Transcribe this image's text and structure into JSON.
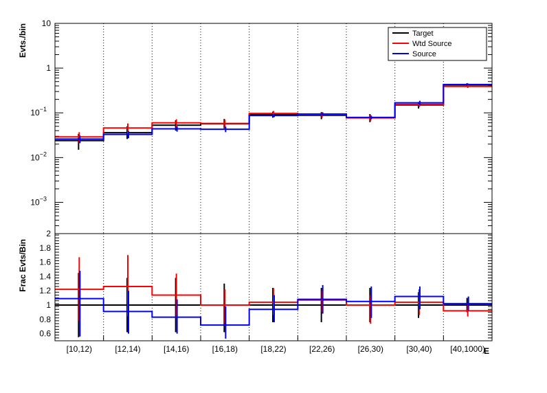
{
  "chart_data": [
    {
      "panel": "top",
      "type": "line",
      "scale": "log",
      "ylabel": "Evts./bin",
      "ylim": [
        0.0002,
        10
      ],
      "yticks": [
        {
          "value": 10,
          "label": "10"
        },
        {
          "value": 1,
          "label": "1"
        },
        {
          "value": 0.1,
          "label": "10",
          "exp": "−1"
        },
        {
          "value": 0.01,
          "label": "10",
          "exp": "−2"
        },
        {
          "value": 0.001,
          "label": "10",
          "exp": "−3"
        }
      ],
      "categories": [
        "[10,12)",
        "[12,14)",
        "[14,16)",
        "[16,18)",
        "[18,22)",
        "[22,26)",
        "[26,30)",
        "[30,40)",
        "[40,1000)"
      ],
      "grid": "vertical-dotted",
      "legend_position": "top-right",
      "series": [
        {
          "name": "Target",
          "color": "#000000",
          "values": [
            0.024,
            0.036,
            0.053,
            0.057,
            0.092,
            0.088,
            0.078,
            0.15,
            0.42
          ],
          "err_low": [
            0.015,
            0.026,
            0.04,
            0.045,
            0.078,
            0.072,
            0.062,
            0.125,
            0.38
          ],
          "err_high": [
            0.034,
            0.05,
            0.068,
            0.073,
            0.106,
            0.104,
            0.094,
            0.175,
            0.46
          ]
        },
        {
          "name": "Wtd Source",
          "color": "#ff0000",
          "values": [
            0.029,
            0.046,
            0.06,
            0.058,
            0.097,
            0.091,
            0.077,
            0.155,
            0.39
          ],
          "err_low": [
            0.021,
            0.034,
            0.047,
            0.046,
            0.084,
            0.078,
            0.065,
            0.135,
            0.36
          ],
          "err_high": [
            0.037,
            0.058,
            0.072,
            0.07,
            0.11,
            0.104,
            0.089,
            0.175,
            0.42
          ]
        },
        {
          "name": "Source",
          "color": "#0000ff",
          "values": [
            0.026,
            0.033,
            0.044,
            0.043,
            0.087,
            0.094,
            0.079,
            0.168,
            0.43
          ],
          "err_low": [
            0.021,
            0.027,
            0.038,
            0.037,
            0.08,
            0.086,
            0.072,
            0.15,
            0.41
          ],
          "err_high": [
            0.031,
            0.039,
            0.05,
            0.049,
            0.094,
            0.102,
            0.086,
            0.186,
            0.45
          ]
        }
      ]
    },
    {
      "panel": "bottom",
      "type": "line",
      "scale": "linear",
      "ylabel": "Frac Evts/Bin",
      "ylim": [
        0.5,
        2
      ],
      "yticks": [
        {
          "value": 2,
          "label": "2"
        },
        {
          "value": 1.8,
          "label": "1.8"
        },
        {
          "value": 1.6,
          "label": "1.6"
        },
        {
          "value": 1.4,
          "label": "1.4"
        },
        {
          "value": 1.2,
          "label": "1.2"
        },
        {
          "value": 1,
          "label": "1"
        },
        {
          "value": 0.8,
          "label": "0.8"
        },
        {
          "value": 0.6,
          "label": "0.6"
        }
      ],
      "categories": [
        "[10,12)",
        "[12,14)",
        "[14,16)",
        "[16,18)",
        "[18,22)",
        "[22,26)",
        "[26,30)",
        "[30,40)",
        "[40,1000)"
      ],
      "xlabel": "E",
      "grid": "vertical-dotted",
      "series": [
        {
          "name": "Target",
          "color": "#000000",
          "values": [
            1,
            1,
            1,
            1,
            1,
            1,
            1,
            1,
            1
          ],
          "err_low": [
            0.55,
            0.62,
            0.62,
            0.62,
            0.76,
            0.76,
            0.76,
            0.82,
            0.9
          ],
          "err_high": [
            1.45,
            1.38,
            1.38,
            1.3,
            1.24,
            1.24,
            1.24,
            1.18,
            1.1
          ]
        },
        {
          "name": "Wtd Source",
          "color": "#ff0000",
          "values": [
            1.22,
            1.26,
            1.14,
            1.0,
            1.04,
            1.07,
            1.0,
            1.04,
            0.92
          ],
          "err_low": [
            0.78,
            0.84,
            0.84,
            0.74,
            0.86,
            0.9,
            0.74,
            0.86,
            0.84
          ],
          "err_high": [
            1.67,
            1.7,
            1.44,
            1.22,
            1.24,
            1.2,
            1.14,
            1.22,
            1.0
          ]
        },
        {
          "name": "Source",
          "color": "#0000ff",
          "values": [
            1.09,
            0.91,
            0.83,
            0.72,
            0.94,
            1.08,
            1.05,
            1.12,
            1.02
          ],
          "err_low": [
            0.56,
            0.6,
            0.6,
            0.53,
            0.76,
            0.88,
            0.82,
            0.94,
            0.92
          ],
          "err_high": [
            1.48,
            1.2,
            1.08,
            0.98,
            1.14,
            1.28,
            1.26,
            1.26,
            1.12
          ]
        }
      ]
    }
  ],
  "legend": [
    {
      "label": "Target",
      "color": "#000000"
    },
    {
      "label": "Wtd Source",
      "color": "#ff0000"
    },
    {
      "label": "Source",
      "color": "#0000ff"
    }
  ]
}
